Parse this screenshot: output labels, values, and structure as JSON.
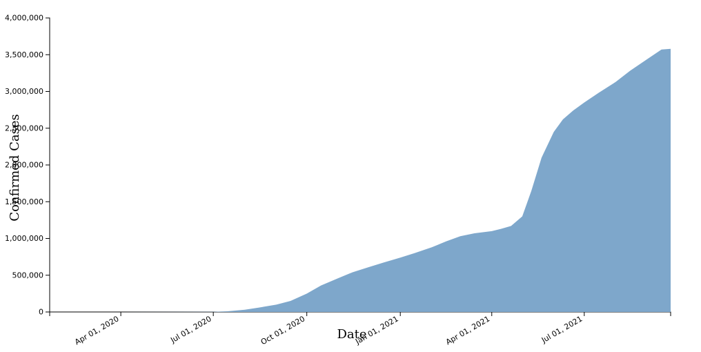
{
  "chart_data": {
    "type": "area",
    "title": "",
    "xlabel": "Date",
    "ylabel": "Confirmed Cases",
    "area_color": "#7ea7cb",
    "x_range": [
      "2020-01-22",
      "2021-09-24"
    ],
    "ylim": [
      0,
      4000000
    ],
    "grid": false,
    "legend": "none",
    "x_ticks": [
      {
        "date": "2020-04-01",
        "label": "Apr 01, 2020"
      },
      {
        "date": "2020-07-01",
        "label": "Jul 01, 2020"
      },
      {
        "date": "2020-10-01",
        "label": "Oct 01, 2020"
      },
      {
        "date": "2021-01-01",
        "label": "Jan 01, 2021"
      },
      {
        "date": "2021-04-01",
        "label": "Apr 01, 2021"
      },
      {
        "date": "2021-07-01",
        "label": "Jul 01, 2021"
      }
    ],
    "y_ticks": [
      {
        "value": 0,
        "label": "0"
      },
      {
        "value": 500000,
        "label": "500,000"
      },
      {
        "value": 1000000,
        "label": "1,000,000"
      },
      {
        "value": 1500000,
        "label": "1,500,000"
      },
      {
        "value": 2000000,
        "label": "2,000,000"
      },
      {
        "value": 2500000,
        "label": "2,500,000"
      },
      {
        "value": 3000000,
        "label": "3,000,000"
      },
      {
        "value": 3500000,
        "label": "3,500,000"
      },
      {
        "value": 4000000,
        "label": "4,000,000"
      }
    ],
    "series": [
      {
        "x": [
          "2020-01-22",
          "2020-04-01",
          "2020-07-01",
          "2020-07-15",
          "2020-08-01",
          "2020-08-15",
          "2020-09-01",
          "2020-09-15",
          "2020-10-01",
          "2020-10-15",
          "2020-11-01",
          "2020-11-15",
          "2020-12-01",
          "2020-12-15",
          "2021-01-01",
          "2021-01-15",
          "2021-02-01",
          "2021-02-15",
          "2021-03-01",
          "2021-03-15",
          "2021-04-01",
          "2021-04-10",
          "2021-04-20",
          "2021-05-01",
          "2021-05-10",
          "2021-05-20",
          "2021-06-01",
          "2021-06-10",
          "2021-06-20",
          "2021-07-01",
          "2021-07-15",
          "2021-08-01",
          "2021-08-15",
          "2021-09-01",
          "2021-09-15",
          "2021-09-24"
        ],
        "y": [
          0,
          0,
          2000,
          10000,
          30000,
          60000,
          100000,
          150000,
          250000,
          360000,
          460000,
          540000,
          610000,
          670000,
          740000,
          800000,
          880000,
          960000,
          1030000,
          1070000,
          1100000,
          1130000,
          1170000,
          1300000,
          1650000,
          2100000,
          2450000,
          2620000,
          2740000,
          2850000,
          2980000,
          3130000,
          3280000,
          3440000,
          3570000,
          3580000
        ]
      }
    ]
  }
}
